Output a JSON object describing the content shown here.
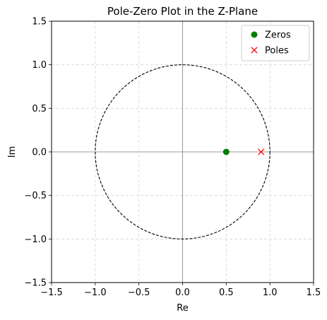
{
  "chart_data": {
    "type": "scatter",
    "title": "Pole-Zero Plot in the Z-Plane",
    "xlabel": "Re",
    "ylabel": "Im",
    "xlim": [
      -1.5,
      1.5
    ],
    "ylim": [
      -1.5,
      1.5
    ],
    "xticks": [
      -1.5,
      -1.0,
      -0.5,
      0.0,
      0.5,
      1.0,
      1.5
    ],
    "yticks": [
      -1.5,
      -1.0,
      -0.5,
      0.0,
      0.5,
      1.0,
      1.5
    ],
    "xtick_labels": [
      "−1.5",
      "−1.0",
      "−0.5",
      "0.0",
      "0.5",
      "1.0",
      "1.5"
    ],
    "ytick_labels": [
      "−1.5",
      "−1.0",
      "−0.5",
      "0.0",
      "0.5",
      "1.0",
      "1.5"
    ],
    "grid": true,
    "grid_style": "dashed",
    "unit_circle": {
      "radius": 1.0,
      "style": "dashed",
      "color": "#000000"
    },
    "reference_axes": true,
    "legend_position": "top-right",
    "series": [
      {
        "name": "Zeros",
        "marker": "circle",
        "color": "#008000",
        "points": [
          {
            "x": 0.5,
            "y": 0.0
          }
        ]
      },
      {
        "name": "Poles",
        "marker": "x",
        "color": "#ff0000",
        "points": [
          {
            "x": 0.9,
            "y": 0.0
          }
        ]
      }
    ]
  }
}
